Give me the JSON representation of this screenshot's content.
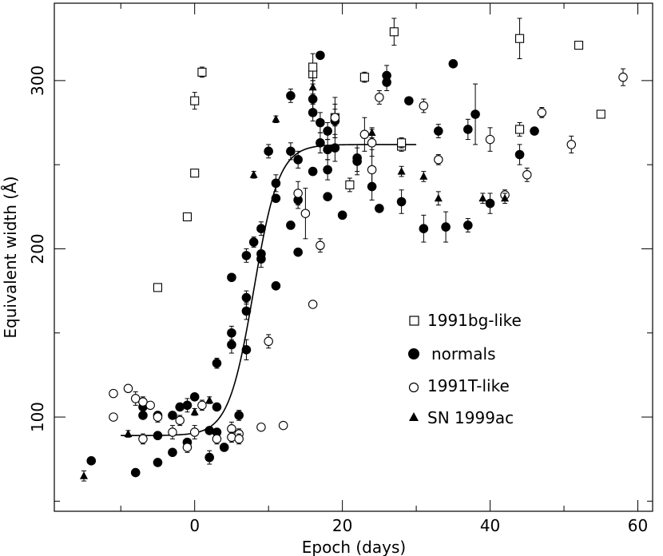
{
  "chart_data": {
    "type": "scatter",
    "title": "",
    "xlabel": "Epoch (days)",
    "ylabel": "Equivalent width (Å)",
    "xlim": [
      -19,
      62
    ],
    "ylim": [
      44,
      346
    ],
    "x_ticks": [
      0,
      20,
      40,
      60
    ],
    "y_ticks": [
      100,
      200,
      300
    ],
    "grid": false,
    "legend_position": "right",
    "series": [
      {
        "name": "1991bg-like",
        "marker": "open-square",
        "points": [
          [
            -5,
            177
          ],
          [
            -1,
            219
          ],
          [
            0,
            245
          ],
          [
            0,
            288
          ],
          [
            1,
            305
          ],
          [
            16,
            304
          ],
          [
            16,
            308
          ],
          [
            19,
            278
          ],
          [
            21,
            238
          ],
          [
            23,
            302
          ],
          [
            27,
            329
          ],
          [
            28,
            261
          ],
          [
            28,
            263
          ],
          [
            44,
            271
          ],
          [
            44,
            325
          ],
          [
            52,
            321
          ],
          [
            55,
            280
          ]
        ],
        "errors": [
          2,
          2,
          2,
          5,
          3,
          6,
          8,
          5,
          4,
          3,
          8,
          3,
          3,
          4,
          12,
          2,
          2
        ]
      },
      {
        "name": "normals",
        "marker": "filled-circle",
        "points": [
          [
            -14,
            74
          ],
          [
            -8,
            67
          ],
          [
            -7,
            106
          ],
          [
            -7,
            101
          ],
          [
            -5,
            89
          ],
          [
            -5,
            73
          ],
          [
            -5,
            101
          ],
          [
            -3,
            101
          ],
          [
            -3,
            79
          ],
          [
            -2,
            106
          ],
          [
            -1,
            107
          ],
          [
            -1,
            85
          ],
          [
            0,
            112
          ],
          [
            2,
            92
          ],
          [
            2,
            76
          ],
          [
            3,
            91
          ],
          [
            3,
            106
          ],
          [
            3,
            132
          ],
          [
            4,
            82
          ],
          [
            5,
            150
          ],
          [
            5,
            143
          ],
          [
            5,
            183
          ],
          [
            6,
            101
          ],
          [
            7,
            140
          ],
          [
            7,
            163
          ],
          [
            7,
            171
          ],
          [
            7,
            196
          ],
          [
            8,
            204
          ],
          [
            9,
            197
          ],
          [
            9,
            194
          ],
          [
            9,
            212
          ],
          [
            10,
            258
          ],
          [
            11,
            178
          ],
          [
            11,
            230
          ],
          [
            11,
            239
          ],
          [
            13,
            214
          ],
          [
            13,
            258
          ],
          [
            13,
            291
          ],
          [
            14,
            198
          ],
          [
            14,
            229
          ],
          [
            14,
            253
          ],
          [
            16,
            289
          ],
          [
            16,
            281
          ],
          [
            17,
            275
          ],
          [
            17,
            315
          ],
          [
            17,
            263
          ],
          [
            18,
            270
          ],
          [
            18,
            259
          ],
          [
            18,
            247
          ],
          [
            18,
            231
          ],
          [
            19,
            260
          ],
          [
            19,
            276
          ],
          [
            16,
            246
          ],
          [
            20,
            220
          ],
          [
            22,
            254
          ],
          [
            22,
            252
          ],
          [
            24,
            237
          ],
          [
            25,
            224
          ],
          [
            26,
            303
          ],
          [
            26,
            299
          ],
          [
            28,
            228
          ],
          [
            29,
            288
          ],
          [
            31,
            212
          ],
          [
            33,
            270
          ],
          [
            34,
            213
          ],
          [
            35,
            310
          ],
          [
            37,
            271
          ],
          [
            37,
            214
          ],
          [
            38,
            280
          ],
          [
            40,
            227
          ],
          [
            44,
            256
          ],
          [
            46,
            270
          ]
        ],
        "errors": [
          0,
          0,
          4,
          0,
          0,
          0,
          0,
          0,
          0,
          0,
          4,
          0,
          0,
          0,
          4,
          0,
          0,
          3,
          0,
          4,
          5,
          0,
          3,
          6,
          5,
          4,
          4,
          3,
          0,
          5,
          4,
          4,
          0,
          0,
          5,
          0,
          5,
          4,
          0,
          5,
          5,
          6,
          5,
          6,
          0,
          6,
          5,
          6,
          6,
          0,
          8,
          10,
          0,
          0,
          8,
          8,
          8,
          0,
          6,
          5,
          7,
          0,
          8,
          4,
          9,
          2,
          6,
          4,
          18,
          6,
          6,
          0
        ]
      },
      {
        "name": "1991T-like",
        "marker": "open-circle",
        "points": [
          [
            -11,
            100
          ],
          [
            -11,
            114
          ],
          [
            -9,
            117
          ],
          [
            -8,
            111
          ],
          [
            -7,
            87
          ],
          [
            -7,
            109
          ],
          [
            -6,
            107
          ],
          [
            -5,
            100
          ],
          [
            -3,
            91
          ],
          [
            -2,
            98
          ],
          [
            -1,
            82
          ],
          [
            0,
            91
          ],
          [
            1,
            107
          ],
          [
            3,
            87
          ],
          [
            5,
            93
          ],
          [
            5,
            88
          ],
          [
            6,
            90
          ],
          [
            6,
            87
          ],
          [
            9,
            94
          ],
          [
            10,
            145
          ],
          [
            12,
            95
          ],
          [
            14,
            233
          ],
          [
            15,
            221
          ],
          [
            16,
            167
          ],
          [
            17,
            202
          ],
          [
            19,
            278
          ],
          [
            23,
            268
          ],
          [
            24,
            263
          ],
          [
            24,
            247
          ],
          [
            25,
            290
          ],
          [
            31,
            285
          ],
          [
            33,
            253
          ],
          [
            40,
            265
          ],
          [
            42,
            232
          ],
          [
            45,
            244
          ],
          [
            47,
            281
          ],
          [
            51,
            262
          ],
          [
            58,
            302
          ]
        ],
        "errors": [
          2,
          2,
          2,
          4,
          3,
          3,
          2,
          3,
          4,
          3,
          3,
          4,
          3,
          3,
          4,
          3,
          3,
          3,
          2,
          4,
          2,
          7,
          15,
          2,
          4,
          12,
          10,
          8,
          12,
          4,
          4,
          3,
          7,
          3,
          4,
          3,
          5,
          5
        ]
      },
      {
        "name": "SN 1999ac",
        "marker": "filled-triangle",
        "points": [
          [
            -15,
            65
          ],
          [
            -9,
            90
          ],
          [
            0,
            103
          ],
          [
            2,
            110
          ],
          [
            8,
            244
          ],
          [
            11,
            277
          ],
          [
            16,
            296
          ],
          [
            24,
            269
          ],
          [
            28,
            246
          ],
          [
            31,
            243
          ],
          [
            33,
            230
          ],
          [
            39,
            230
          ],
          [
            42,
            230
          ]
        ],
        "errors": [
          3,
          2,
          2,
          2,
          2,
          2,
          4,
          3,
          3,
          3,
          4,
          3,
          3
        ]
      }
    ],
    "fit_curve": {
      "x_start": -10,
      "x_end": 30,
      "lower_level": 89,
      "upper_level": 262,
      "midpoint": 8,
      "width": 1.7
    }
  }
}
